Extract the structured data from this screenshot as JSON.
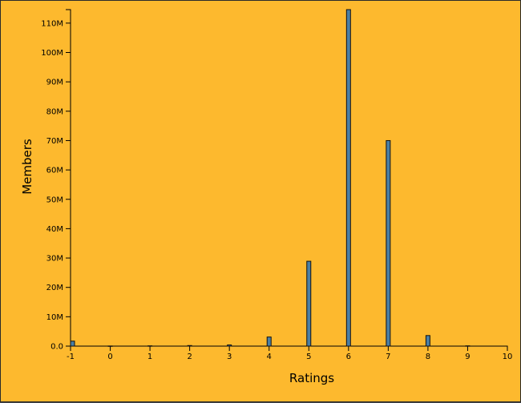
{
  "chart_data": {
    "type": "bar",
    "xlabel": "Ratings",
    "ylabel": "Members",
    "x_ticks": [
      "-1",
      "0",
      "1",
      "2",
      "3",
      "4",
      "5",
      "6",
      "7",
      "8",
      "9",
      "10"
    ],
    "y_ticks": [
      "0.0",
      "10M",
      "20M",
      "30M",
      "40M",
      "50M",
      "60M",
      "70M",
      "80M",
      "90M",
      "100M",
      "110M"
    ],
    "xlim": [
      -1,
      10
    ],
    "ylim": [
      0,
      114600000
    ],
    "x": [
      -1,
      0,
      1,
      2,
      3,
      4,
      5,
      6,
      7,
      8,
      9
    ],
    "values": [
      1700000,
      50000,
      100000,
      200000,
      400000,
      3100000,
      28900000,
      114600000,
      70000000,
      3600000,
      100000
    ],
    "bar_color": "#4a7fa5",
    "background_color": "#fdb92e",
    "grid": false
  }
}
